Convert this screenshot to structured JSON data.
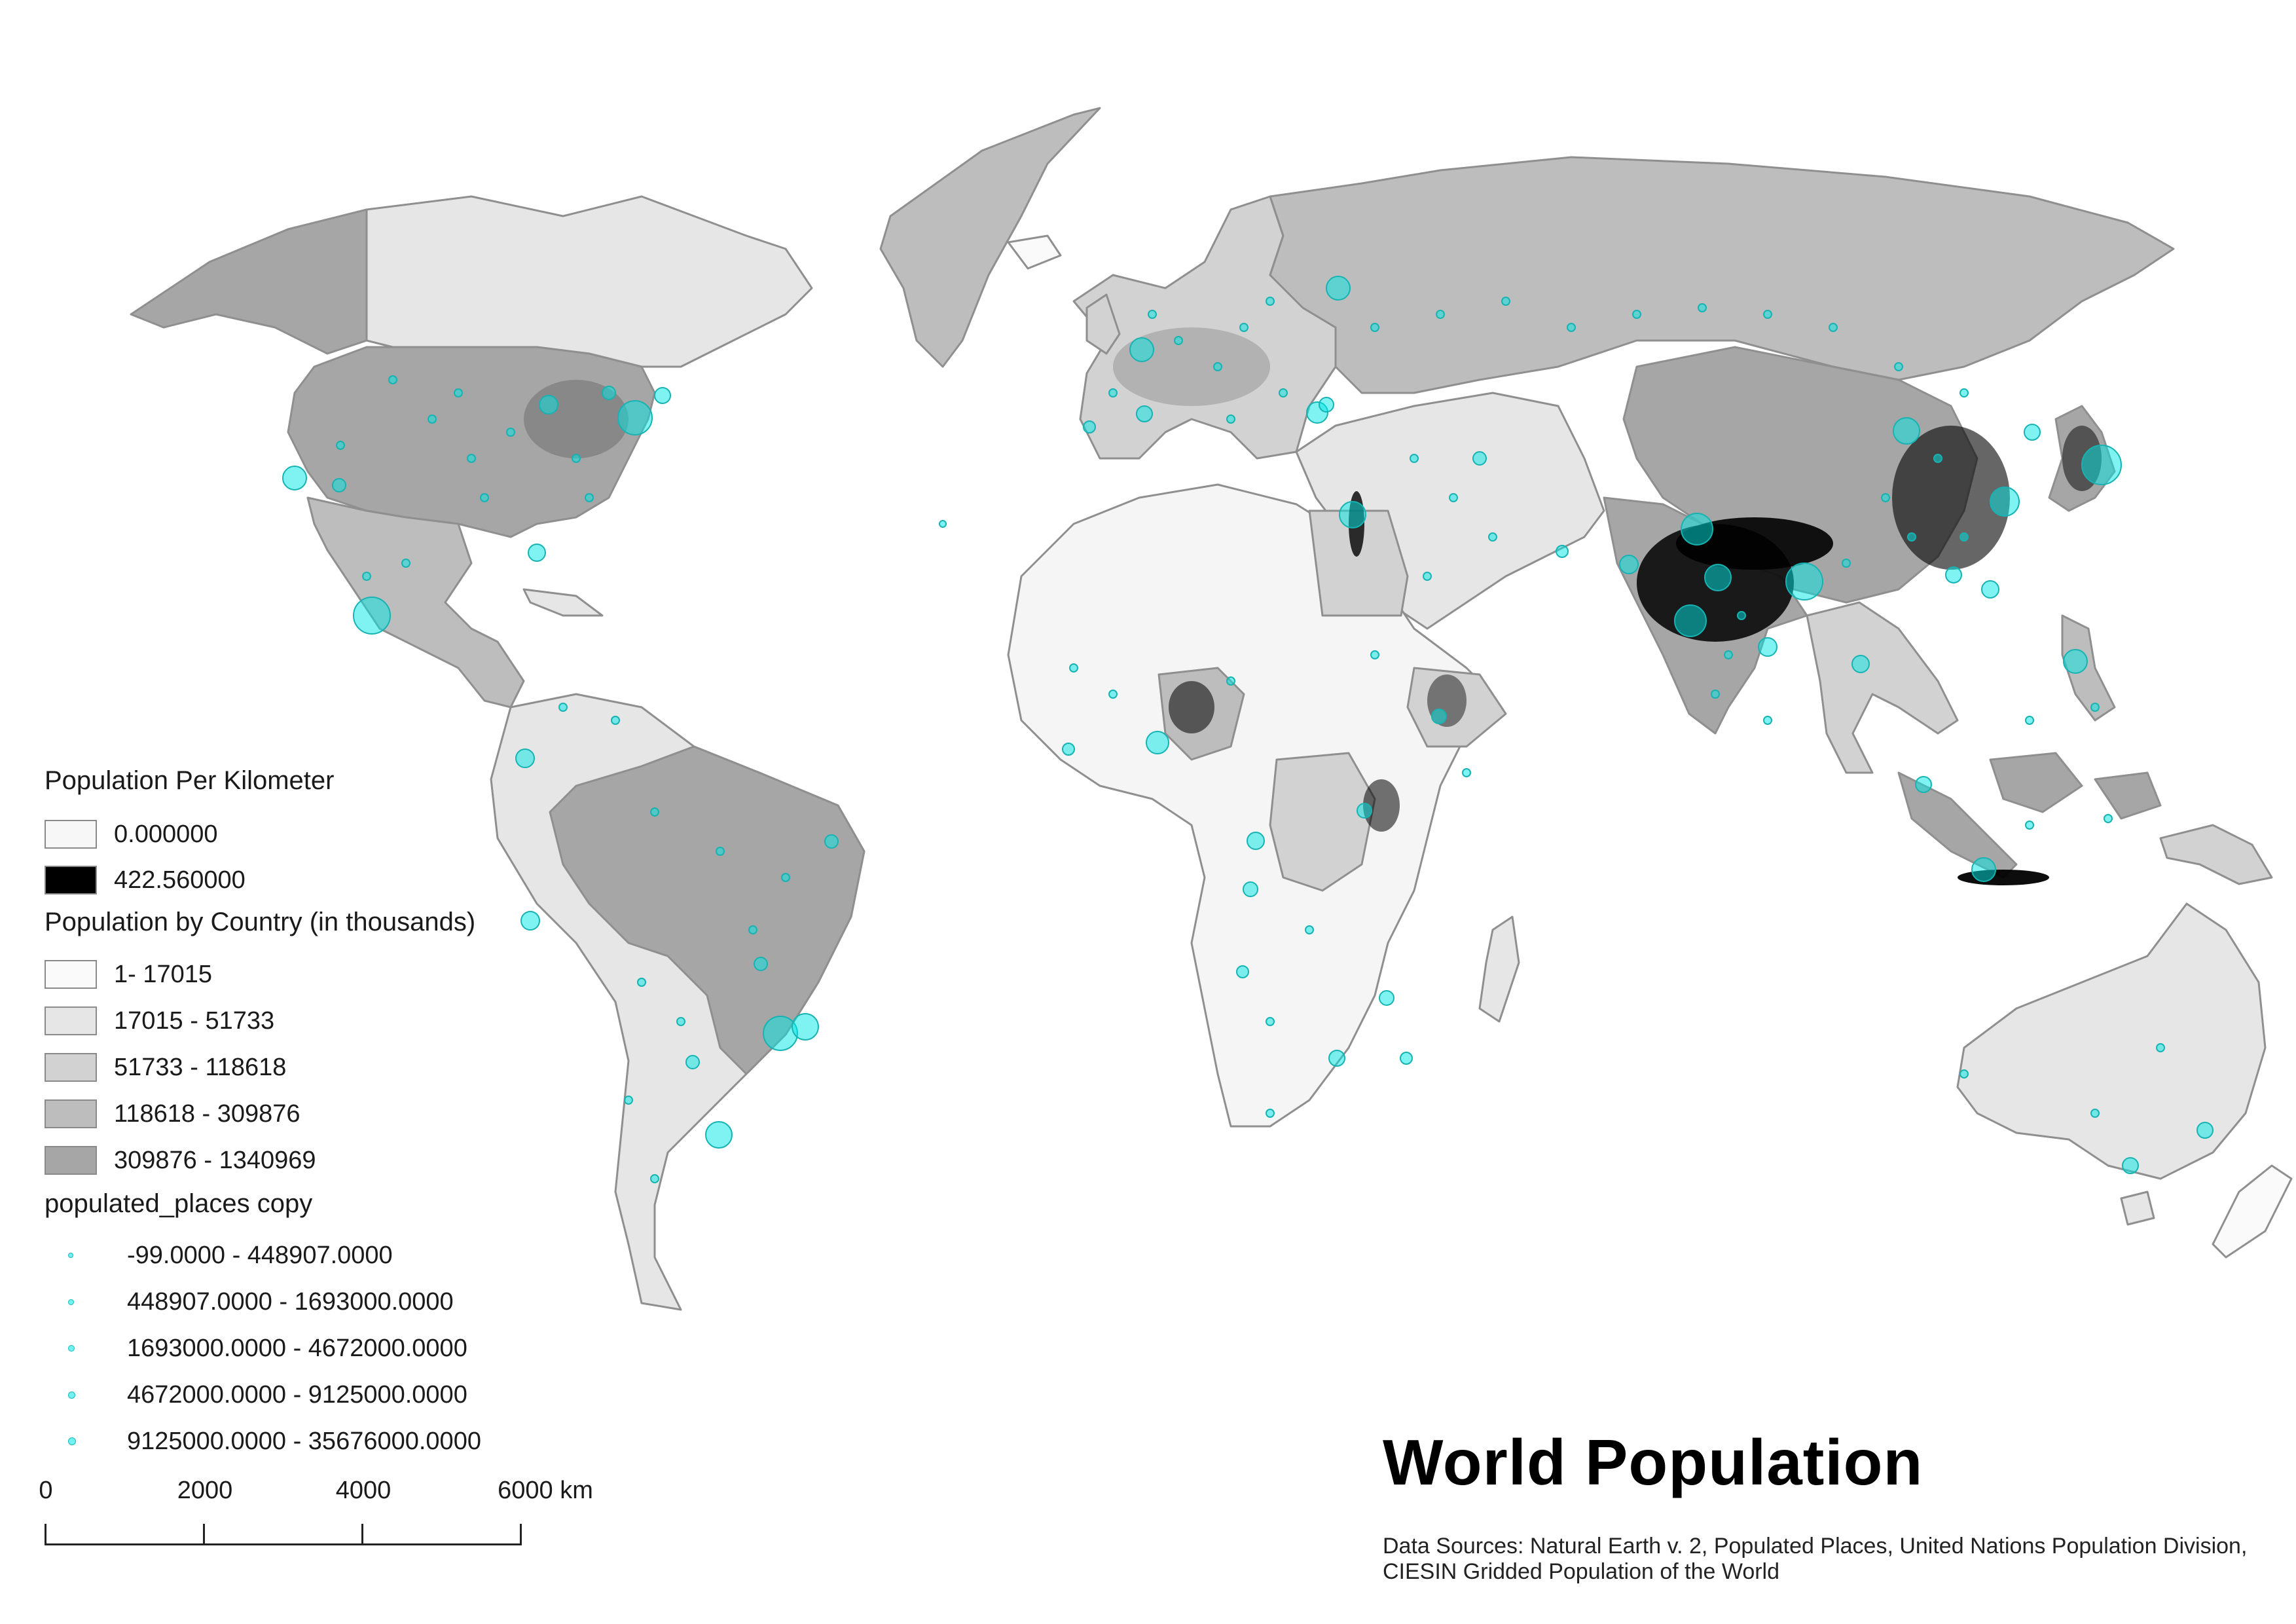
{
  "title": "World Population",
  "sources": "Data Sources: Natural Earth v. 2, Populated Places, United Nations Population Division, CIESIN Gridded Population of the World",
  "legend": {
    "density": {
      "heading": "Population Per Kilometer",
      "min_label": "0.000000",
      "max_label": "422.560000",
      "colors": [
        "#f7f7f7",
        "#000000"
      ]
    },
    "country_population": {
      "heading": "Population by Country (in thousands)",
      "classes": [
        {
          "label": "1- 17015",
          "color": "#fafafa"
        },
        {
          "label": "17015 - 51733",
          "color": "#e6e6e6"
        },
        {
          "label": "51733 - 118618",
          "color": "#d2d2d2"
        },
        {
          "label": "118618 - 309876",
          "color": "#bdbdbd"
        },
        {
          "label": "309876 - 1340969",
          "color": "#a6a6a6"
        }
      ]
    },
    "populated_places": {
      "heading": "populated_places copy",
      "color": "#00e5e5",
      "classes": [
        {
          "label": "-99.0000 - 448907.0000"
        },
        {
          "label": "448907.0000 - 1693000.0000"
        },
        {
          "label": "1693000.0000 - 4672000.0000"
        },
        {
          "label": "4672000.0000 - 9125000.0000"
        },
        {
          "label": "9125000.0000 - 35676000.0000"
        }
      ]
    }
  },
  "scalebar": {
    "labels": [
      "0",
      "2000",
      "4000",
      "6000 km"
    ]
  }
}
